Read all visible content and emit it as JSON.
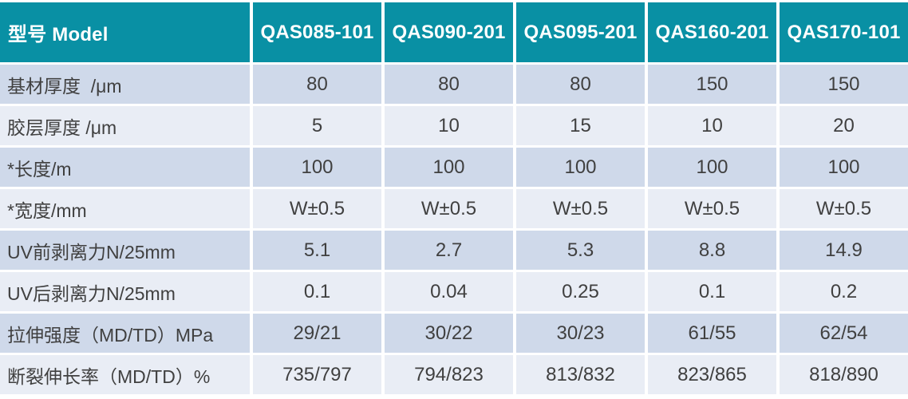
{
  "colors": {
    "header_bg": "#0990A4",
    "header_text": "#FFFFFF",
    "row_odd_bg": "#CFD9EA",
    "row_even_bg": "#E9EDF5",
    "cell_text": "#404040",
    "gap": "#FFFFFF"
  },
  "header": {
    "model_label": "型号 Model",
    "columns": [
      "QAS085-101",
      "QAS090-201",
      "QAS095-201",
      "QAS160-201",
      "QAS170-101"
    ]
  },
  "rows": [
    {
      "label": "基材厚度  /μm",
      "values": [
        "80",
        "80",
        "80",
        "150",
        "150"
      ]
    },
    {
      "label": "胶层厚度 /μm",
      "values": [
        "5",
        "10",
        "15",
        "10",
        "20"
      ]
    },
    {
      "label": "*长度/m",
      "values": [
        "100",
        "100",
        "100",
        "100",
        "100"
      ]
    },
    {
      "label": "*宽度/mm",
      "values": [
        "W±0.5",
        "W±0.5",
        "W±0.5",
        "W±0.5",
        "W±0.5"
      ]
    },
    {
      "label": "UV前剥离力N/25mm",
      "values": [
        "5.1",
        "2.7",
        "5.3",
        "8.8",
        "14.9"
      ]
    },
    {
      "label": "UV后剥离力N/25mm",
      "values": [
        "0.1",
        "0.04",
        "0.25",
        "0.1",
        "0.2"
      ]
    },
    {
      "label": "拉伸强度（MD/TD）MPa",
      "values": [
        "29/21",
        "30/22",
        "30/23",
        "61/55",
        "62/54"
      ]
    },
    {
      "label": "断裂伸长率（MD/TD）%",
      "values": [
        "735/797",
        "794/823",
        "813/832",
        "823/865",
        "818/890"
      ]
    }
  ],
  "chart_data": {
    "type": "table",
    "title": "型号 Model",
    "columns": [
      "QAS085-101",
      "QAS090-201",
      "QAS095-201",
      "QAS160-201",
      "QAS170-101"
    ],
    "row_labels": [
      "基材厚度 /μm",
      "胶层厚度 /μm",
      "*长度/m",
      "*宽度/mm",
      "UV前剥离力N/25mm",
      "UV后剥离力N/25mm",
      "拉伸强度（MD/TD）MPa",
      "断裂伸长率（MD/TD）%"
    ],
    "cells": [
      [
        "80",
        "80",
        "80",
        "150",
        "150"
      ],
      [
        "5",
        "10",
        "15",
        "10",
        "20"
      ],
      [
        "100",
        "100",
        "100",
        "100",
        "100"
      ],
      [
        "W±0.5",
        "W±0.5",
        "W±0.5",
        "W±0.5",
        "W±0.5"
      ],
      [
        "5.1",
        "2.7",
        "5.3",
        "8.8",
        "14.9"
      ],
      [
        "0.1",
        "0.04",
        "0.25",
        "0.1",
        "0.2"
      ],
      [
        "29/21",
        "30/22",
        "30/23",
        "61/55",
        "62/54"
      ],
      [
        "735/797",
        "794/823",
        "813/832",
        "823/865",
        "818/890"
      ]
    ]
  }
}
